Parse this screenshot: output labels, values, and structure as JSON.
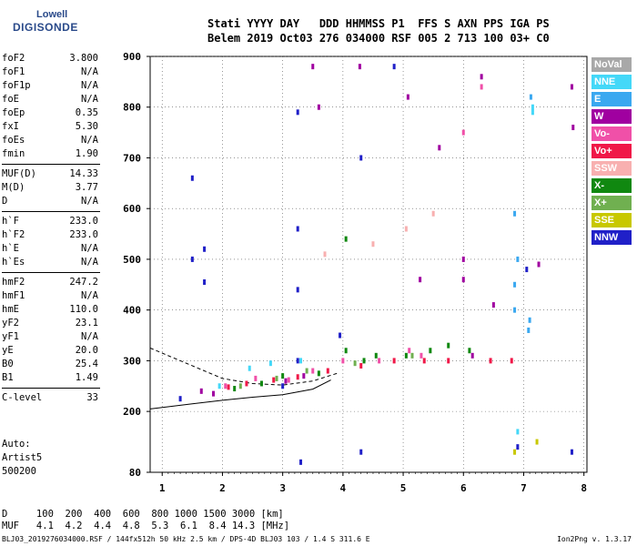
{
  "logo": {
    "line1": "Lowell",
    "line2": "DIGISONDE"
  },
  "header": {
    "line1": "Stati YYYY DAY   DDD HHMMSS P1  FFS S AXN PPS IGA PS",
    "line2": "Belem 2019 Oct03 276 034000 RSF 005 2 713 100 03+ C0"
  },
  "params_group1": [
    {
      "k": "foF2",
      "v": "3.800"
    },
    {
      "k": "foF1",
      "v": "N/A"
    },
    {
      "k": "foF1p",
      "v": "N/A"
    },
    {
      "k": "foE",
      "v": "N/A"
    },
    {
      "k": "foEp",
      "v": "0.35"
    },
    {
      "k": "fxI",
      "v": "5.30"
    },
    {
      "k": "foEs",
      "v": "N/A"
    },
    {
      "k": "fmin",
      "v": "1.90"
    }
  ],
  "params_group2": [
    {
      "k": "MUF(D)",
      "v": "14.33"
    },
    {
      "k": "M(D)",
      "v": "3.77"
    },
    {
      "k": "D",
      "v": "N/A"
    }
  ],
  "params_group3": [
    {
      "k": "h`F",
      "v": "233.0"
    },
    {
      "k": "h`F2",
      "v": "233.0"
    },
    {
      "k": "h`E",
      "v": "N/A"
    },
    {
      "k": "h`Es",
      "v": "N/A"
    }
  ],
  "params_group4": [
    {
      "k": "hmF2",
      "v": "247.2"
    },
    {
      "k": "hmF1",
      "v": "N/A"
    },
    {
      "k": "hmE",
      "v": "110.0"
    },
    {
      "k": "yF2",
      "v": "23.1"
    },
    {
      "k": "yF1",
      "v": "N/A"
    },
    {
      "k": "yE",
      "v": "20.0"
    },
    {
      "k": "B0",
      "v": "25.4"
    },
    {
      "k": "B1",
      "v": "1.49"
    }
  ],
  "params_group5": [
    {
      "k": "C-level",
      "v": "33"
    }
  ],
  "auto": {
    "l1": "Auto:",
    "l2": "Artist5",
    "l3": "500200"
  },
  "legend": [
    {
      "label": "NoVal",
      "color": "#a8a8a8"
    },
    {
      "label": "NNE",
      "color": "#44d8f8"
    },
    {
      "label": "E",
      "color": "#3aa8f0"
    },
    {
      "label": "W",
      "color": "#a000a0"
    },
    {
      "label": "Vo-",
      "color": "#f050a8"
    },
    {
      "label": "Vo+",
      "color": "#f01848"
    },
    {
      "label": "SSW",
      "color": "#f8b0b0"
    },
    {
      "label": "X-",
      "color": "#108810"
    },
    {
      "label": "X+",
      "color": "#70b050"
    },
    {
      "label": "SSE",
      "color": "#c8c800"
    },
    {
      "label": "NNW",
      "color": "#2020c8"
    }
  ],
  "bottom": {
    "line1": "D     100  200  400  600  800 1000 1500 3000 [km]",
    "line2": "MUF   4.1  4.2  4.4  4.8  5.3  6.1  8.4 14.3 [MHz]"
  },
  "footer": "BLJ03_2019276034000.RSF / 144fx512h 50 kHz 2.5 km / DPS-4D BLJ03 103 / 1.4 S 311.6 E",
  "version": "Ion2Png v. 1.3.17",
  "chart_data": {
    "type": "scatter",
    "x_ticks": [
      1,
      2,
      3,
      4,
      5,
      6,
      7,
      8
    ],
    "y_ticks": [
      80,
      200,
      300,
      400,
      500,
      600,
      700,
      800,
      900
    ],
    "xlim": [
      0.8,
      8.05
    ],
    "ylim": [
      80,
      900
    ],
    "xlabel": "",
    "ylabel": "",
    "series": [
      {
        "name": "NoVal",
        "values": []
      },
      {
        "name": "NNE",
        "values": [
          [
            1.95,
            250
          ],
          [
            2.45,
            285
          ],
          [
            2.8,
            295
          ],
          [
            3.3,
            300
          ],
          [
            6.9,
            160
          ],
          [
            7.15,
            800
          ],
          [
            7.15,
            790
          ]
        ]
      },
      {
        "name": "E",
        "values": [
          [
            6.85,
            400
          ],
          [
            6.85,
            450
          ],
          [
            7.12,
            820
          ],
          [
            7.1,
            380
          ],
          [
            7.08,
            360
          ],
          [
            6.9,
            500
          ],
          [
            6.85,
            590
          ]
        ]
      },
      {
        "name": "W",
        "values": [
          [
            1.65,
            240
          ],
          [
            1.85,
            235
          ],
          [
            3.05,
            260
          ],
          [
            3.35,
            270
          ],
          [
            3.5,
            880
          ],
          [
            3.6,
            800
          ],
          [
            4.28,
            880
          ],
          [
            5.08,
            820
          ],
          [
            5.28,
            460
          ],
          [
            5.6,
            720
          ],
          [
            6.0,
            500
          ],
          [
            6.0,
            460
          ],
          [
            6.3,
            860
          ],
          [
            7.8,
            840
          ],
          [
            7.82,
            760
          ],
          [
            7.25,
            490
          ],
          [
            6.5,
            410
          ],
          [
            6.15,
            310
          ]
        ]
      },
      {
        "name": "Vo-",
        "values": [
          [
            2.05,
            250
          ],
          [
            2.55,
            265
          ],
          [
            3.1,
            262
          ],
          [
            3.5,
            280
          ],
          [
            4.0,
            300
          ],
          [
            4.6,
            300
          ],
          [
            5.1,
            320
          ],
          [
            5.3,
            310
          ],
          [
            6.0,
            750
          ],
          [
            6.3,
            840
          ]
        ]
      },
      {
        "name": "Vo+",
        "values": [
          [
            2.1,
            248
          ],
          [
            2.4,
            255
          ],
          [
            2.85,
            262
          ],
          [
            3.25,
            268
          ],
          [
            3.75,
            280
          ],
          [
            4.3,
            290
          ],
          [
            4.85,
            300
          ],
          [
            5.35,
            300
          ],
          [
            5.75,
            300
          ],
          [
            6.45,
            300
          ],
          [
            6.8,
            300
          ]
        ]
      },
      {
        "name": "SSW",
        "values": [
          [
            3.7,
            510
          ],
          [
            4.5,
            530
          ],
          [
            5.05,
            560
          ],
          [
            5.5,
            590
          ]
        ]
      },
      {
        "name": "X-",
        "values": [
          [
            2.2,
            245
          ],
          [
            2.65,
            255
          ],
          [
            3.0,
            270
          ],
          [
            3.6,
            275
          ],
          [
            4.05,
            320
          ],
          [
            4.05,
            540
          ],
          [
            4.35,
            300
          ],
          [
            4.55,
            310
          ],
          [
            5.05,
            310
          ],
          [
            5.45,
            320
          ],
          [
            5.75,
            330
          ],
          [
            6.1,
            320
          ]
        ]
      },
      {
        "name": "X+",
        "values": [
          [
            2.3,
            250
          ],
          [
            2.9,
            265
          ],
          [
            3.4,
            280
          ],
          [
            4.2,
            295
          ],
          [
            5.15,
            310
          ]
        ]
      },
      {
        "name": "SSE",
        "values": [
          [
            6.85,
            120
          ],
          [
            7.22,
            140
          ]
        ]
      },
      {
        "name": "NNW",
        "values": [
          [
            1.3,
            225
          ],
          [
            1.5,
            660
          ],
          [
            1.5,
            500
          ],
          [
            1.7,
            520
          ],
          [
            1.7,
            455
          ],
          [
            3.0,
            250
          ],
          [
            3.25,
            790
          ],
          [
            3.25,
            560
          ],
          [
            3.25,
            440
          ],
          [
            3.25,
            300
          ],
          [
            3.3,
            100
          ],
          [
            3.95,
            350
          ],
          [
            4.3,
            120
          ],
          [
            4.3,
            700
          ],
          [
            4.85,
            880
          ],
          [
            7.05,
            480
          ],
          [
            7.8,
            120
          ],
          [
            6.9,
            130
          ]
        ]
      }
    ],
    "curves": {
      "virtual_height_dashed": [
        [
          0.8,
          325
        ],
        [
          1.5,
          290
        ],
        [
          2.0,
          265
        ],
        [
          2.5,
          255
        ],
        [
          3.0,
          252
        ],
        [
          3.5,
          260
        ],
        [
          3.9,
          275
        ]
      ],
      "true_height_solid": [
        [
          0.8,
          205
        ],
        [
          1.5,
          215
        ],
        [
          2.0,
          222
        ],
        [
          2.5,
          228
        ],
        [
          3.0,
          233
        ],
        [
          3.5,
          244
        ],
        [
          3.8,
          262
        ]
      ]
    }
  }
}
